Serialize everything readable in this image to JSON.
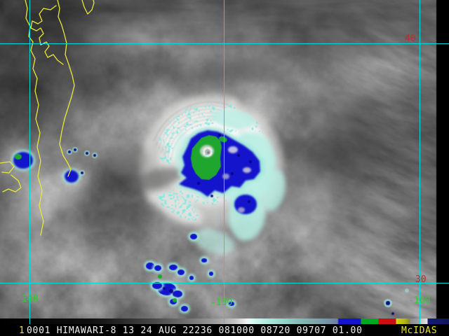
{
  "palette": {
    "background": "#000000",
    "grid_line": "#00dcdc",
    "coastline": "#e8e838",
    "lat_label_color": "#b63232",
    "lon_label_color": "#2ecc2e",
    "status_text": "#f0f0f0",
    "status_accent": "#e8e830",
    "cloud_white": "#f4f4f2",
    "enh_pale_cyan": "#b7eee3",
    "enh_cyan_fringe": "#9fe8dc",
    "enh_blue": "#1414cc",
    "enh_green": "#1fa62e",
    "enh_navy": "#000080"
  },
  "grid": {
    "lat_labels": {
      "n40": "40",
      "n30": "30"
    },
    "lon_labels": {
      "w140": "-140",
      "w150": "-150",
      "w160": "-160"
    }
  },
  "status_bar": {
    "frame_number": "1",
    "annotation": "0001 HIMAWARI-8 13 24 AUG 22236 081000 08720 09707 01.00",
    "brand": "McIDAS"
  },
  "colorbar": {
    "stops": [
      [
        0,
        "#000000"
      ],
      [
        130,
        "#101010"
      ],
      [
        165,
        "#232323"
      ],
      [
        200,
        "#3a3a3a"
      ],
      [
        235,
        "#555555"
      ],
      [
        270,
        "#757575"
      ],
      [
        305,
        "#9a9a9a"
      ],
      [
        335,
        "#c4c4c4"
      ],
      [
        352,
        "#f2f2f2"
      ],
      [
        356,
        "#e0fbf5"
      ],
      [
        378,
        "#b2ecdf"
      ],
      [
        402,
        "#96d8cc"
      ],
      [
        426,
        "#83bdb8"
      ],
      [
        450,
        "#7da6ab"
      ],
      [
        468,
        "#7691a6"
      ],
      [
        481,
        "#6f7fa2"
      ],
      [
        483,
        "#1414cc"
      ],
      [
        514,
        "#1414cc"
      ],
      [
        515,
        "#00a81e"
      ],
      [
        539,
        "#00a81e"
      ],
      [
        540,
        "#cc1010"
      ],
      [
        564,
        "#cc1010"
      ],
      [
        565,
        "#d4d414"
      ],
      [
        576,
        "#b8b810"
      ],
      [
        584,
        "#8a8a30"
      ],
      [
        585,
        "#8c8c8c"
      ],
      [
        597,
        "#a2a2a2"
      ],
      [
        600,
        "#c6c6c6"
      ],
      [
        609,
        "#e2e2e2"
      ],
      [
        610,
        "#141b7a"
      ],
      [
        640,
        "#10155e"
      ]
    ]
  }
}
